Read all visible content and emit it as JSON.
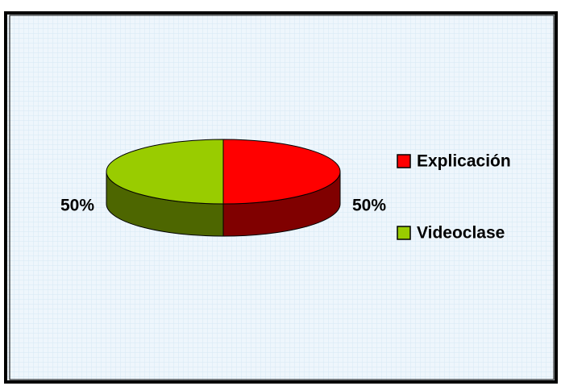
{
  "chart_data": {
    "type": "pie3d",
    "categories": [
      "Explicación",
      "Videoclase"
    ],
    "values": [
      50,
      50
    ],
    "value_labels": [
      "50%",
      "50%"
    ],
    "colors": [
      "#ff0000",
      "#99cc00"
    ],
    "legend": "right"
  }
}
